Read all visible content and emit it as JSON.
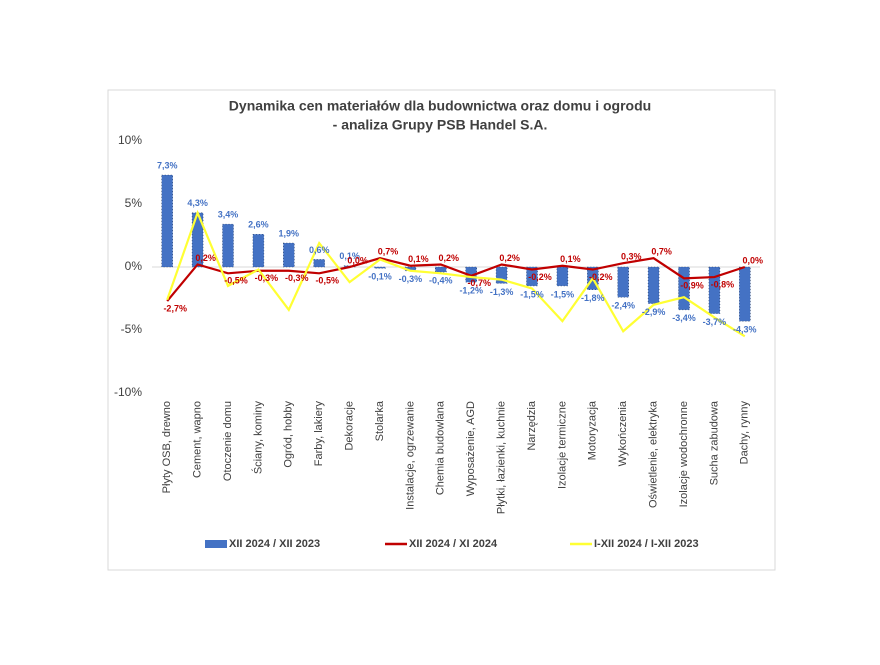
{
  "chart_data": {
    "type": "bar-line",
    "title": "Dynamika cen materiałów dla budownictwa oraz domu i ogrodu",
    "subtitle": "- analiza Grupy PSB Handel S.A.",
    "categories": [
      "Płyty OSB, drewno",
      "Cement, wapno",
      "Otoczenie domu",
      "Ściany, kominy",
      "Ogród, hobby",
      "Farby, lakiery",
      "Dekoracje",
      "Stolarka",
      "Instalacje, ogrzewanie",
      "Chemia budowlana",
      "Wyposażenie, AGD",
      "Płytki, łazienki, kuchnie",
      "Narzędzia",
      "Izolacje termiczne",
      "Motoryzacja",
      "Wykończenia",
      "Oświetlenie, elektryka",
      "Izolacje wodochronne",
      "Sucha zabudowa",
      "Dachy, rynny"
    ],
    "series": [
      {
        "name": "XII 2024 / XII 2023",
        "kind": "bar",
        "color": "#4472c4",
        "values": [
          7.3,
          4.3,
          3.4,
          2.6,
          1.9,
          0.6,
          0.1,
          -0.1,
          -0.3,
          -0.4,
          -1.2,
          -1.3,
          -1.5,
          -1.5,
          -1.8,
          -2.4,
          -2.9,
          -3.4,
          -3.7,
          -4.3
        ],
        "value_labels": [
          "7,3%",
          "4,3%",
          "3,4%",
          "2,6%",
          "1,9%",
          "0,6%",
          "0,1%",
          "-0,1%",
          "-0,3%",
          "-0,4%",
          "-1,2%",
          "-1,3%",
          "-1,5%",
          "-1,5%",
          "-1,8%",
          "-2,4%",
          "-2,9%",
          "-3,4%",
          "-3,7%",
          "-4,3%"
        ]
      },
      {
        "name": "XII 2024 / XI 2024",
        "kind": "line",
        "color": "#c00000",
        "values": [
          -2.7,
          0.2,
          -0.5,
          -0.3,
          -0.3,
          -0.5,
          0.0,
          0.7,
          0.1,
          0.2,
          -0.7,
          0.2,
          -0.2,
          0.1,
          -0.2,
          0.3,
          0.7,
          -0.9,
          -0.8,
          0.0
        ],
        "value_labels": [
          "-2,7%",
          "0,2%",
          "-0,5%",
          "-0,3%",
          "-0,3%",
          "-0,5%",
          "0,0%",
          "0,7%",
          "0,1%",
          "0,2%",
          "-0,7%",
          "0,2%",
          "-0,2%",
          "0,1%",
          "-0,2%",
          "0,3%",
          "0,7%",
          "-0,9%",
          "-0,8%",
          "0,0%"
        ]
      },
      {
        "name": "I-XII 2024 / I-XII 2023",
        "kind": "line",
        "color": "#ffff33",
        "values": [
          -2.6,
          4.3,
          -1.5,
          -0.2,
          -3.4,
          1.9,
          -1.2,
          0.6,
          -0.3,
          -0.5,
          -0.8,
          -1.0,
          -1.7,
          -4.3,
          -0.9,
          -5.1,
          -3.0,
          -2.4,
          -4.0,
          -5.5
        ]
      }
    ],
    "ylim": [
      -10,
      10
    ],
    "yticks": [
      {
        "value": -10,
        "label": "-10%"
      },
      {
        "value": -5,
        "label": "-5%"
      },
      {
        "value": 0,
        "label": "0%"
      },
      {
        "value": 5,
        "label": "5%"
      },
      {
        "value": 10,
        "label": "10%"
      }
    ],
    "legend": "bottom"
  }
}
